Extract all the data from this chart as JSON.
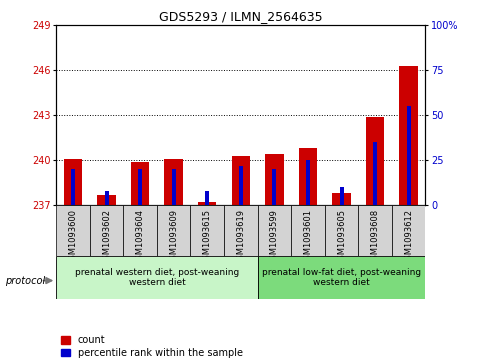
{
  "title": "GDS5293 / ILMN_2564635",
  "samples": [
    "GSM1093600",
    "GSM1093602",
    "GSM1093604",
    "GSM1093609",
    "GSM1093615",
    "GSM1093619",
    "GSM1093599",
    "GSM1093601",
    "GSM1093605",
    "GSM1093608",
    "GSM1093612"
  ],
  "red_values": [
    240.1,
    237.7,
    239.9,
    240.1,
    237.2,
    240.3,
    240.4,
    240.8,
    237.8,
    242.9,
    246.3
  ],
  "blue_values_pct": [
    20,
    8,
    20,
    20,
    8,
    22,
    20,
    25,
    10,
    35,
    55
  ],
  "ylim_left": [
    237,
    249
  ],
  "ylim_right": [
    0,
    100
  ],
  "yticks_left": [
    237,
    240,
    243,
    246,
    249
  ],
  "yticks_right": [
    0,
    25,
    50,
    75,
    100
  ],
  "grid_lines": [
    240,
    243,
    246
  ],
  "group1_label": "prenatal western diet, post-weaning\nwestern diet",
  "group2_label": "prenatal low-fat diet, post-weaning\nwestern diet",
  "group1_indices": [
    0,
    1,
    2,
    3,
    4,
    5
  ],
  "group2_indices": [
    6,
    7,
    8,
    9,
    10
  ],
  "bar_color": "#cc0000",
  "blue_color": "#0000cc",
  "bg_color": "#d3d3d3",
  "group1_bg": "#c8f5c8",
  "group2_bg": "#7cdb7c",
  "protocol_label": "protocol",
  "legend_count": "count",
  "legend_pct": "percentile rank within the sample",
  "title_fontsize": 9,
  "axis_fontsize": 7,
  "label_fontsize": 6,
  "group_fontsize": 6.5,
  "legend_fontsize": 7
}
